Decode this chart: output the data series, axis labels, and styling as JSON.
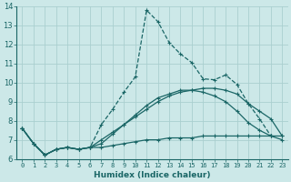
{
  "xlabel": "Humidex (Indice chaleur)",
  "xlim": [
    -0.5,
    23.5
  ],
  "ylim": [
    6,
    14
  ],
  "yticks": [
    6,
    7,
    8,
    9,
    10,
    11,
    12,
    13,
    14
  ],
  "xticks": [
    0,
    1,
    2,
    3,
    4,
    5,
    6,
    7,
    8,
    9,
    10,
    11,
    12,
    13,
    14,
    15,
    16,
    17,
    18,
    19,
    20,
    21,
    22,
    23
  ],
  "bg_color": "#cce8e8",
  "grid_color": "#aacfcf",
  "line_color": "#1a6666",
  "line1_dashed": {
    "x": [
      0,
      1,
      2,
      3,
      4,
      5,
      6,
      7,
      8,
      9,
      10,
      11,
      12,
      13,
      14,
      15,
      16,
      17,
      18,
      19,
      20,
      21,
      22
    ],
    "y": [
      7.6,
      6.8,
      6.2,
      6.5,
      6.6,
      6.5,
      6.6,
      7.8,
      8.6,
      9.5,
      10.3,
      13.8,
      13.2,
      12.1,
      11.5,
      11.05,
      10.2,
      10.15,
      10.4,
      9.9,
      8.9,
      8.1,
      7.2
    ]
  },
  "line2_solid": {
    "x": [
      0,
      1,
      2,
      3,
      4,
      5,
      6,
      7,
      8,
      9,
      10,
      11,
      12,
      13,
      14,
      15,
      16,
      17,
      18,
      19,
      20,
      21,
      22,
      23
    ],
    "y": [
      7.6,
      6.8,
      6.2,
      6.5,
      6.6,
      6.5,
      6.6,
      7.0,
      7.4,
      7.8,
      8.2,
      8.6,
      9.0,
      9.3,
      9.5,
      9.6,
      9.7,
      9.7,
      9.6,
      9.4,
      8.9,
      8.5,
      8.1,
      7.2
    ]
  },
  "line3_solid": {
    "x": [
      0,
      1,
      2,
      3,
      4,
      5,
      6,
      7,
      8,
      9,
      10,
      11,
      12,
      13,
      14,
      15,
      16,
      17,
      18,
      19,
      20,
      21,
      22,
      23
    ],
    "y": [
      7.6,
      6.8,
      6.2,
      6.5,
      6.6,
      6.5,
      6.6,
      6.6,
      6.7,
      6.8,
      6.9,
      7.0,
      7.0,
      7.1,
      7.1,
      7.1,
      7.2,
      7.2,
      7.2,
      7.2,
      7.2,
      7.2,
      7.2,
      7.2
    ]
  },
  "line4_solid": {
    "x": [
      0,
      1,
      2,
      3,
      4,
      5,
      6,
      7,
      8,
      9,
      10,
      11,
      12,
      13,
      14,
      15,
      16,
      17,
      18,
      19,
      20,
      21,
      22,
      23
    ],
    "y": [
      7.6,
      6.8,
      6.2,
      6.5,
      6.6,
      6.5,
      6.6,
      6.8,
      7.3,
      7.8,
      8.3,
      8.8,
      9.2,
      9.4,
      9.6,
      9.6,
      9.5,
      9.3,
      9.0,
      8.5,
      7.9,
      7.5,
      7.2,
      7.0
    ]
  }
}
